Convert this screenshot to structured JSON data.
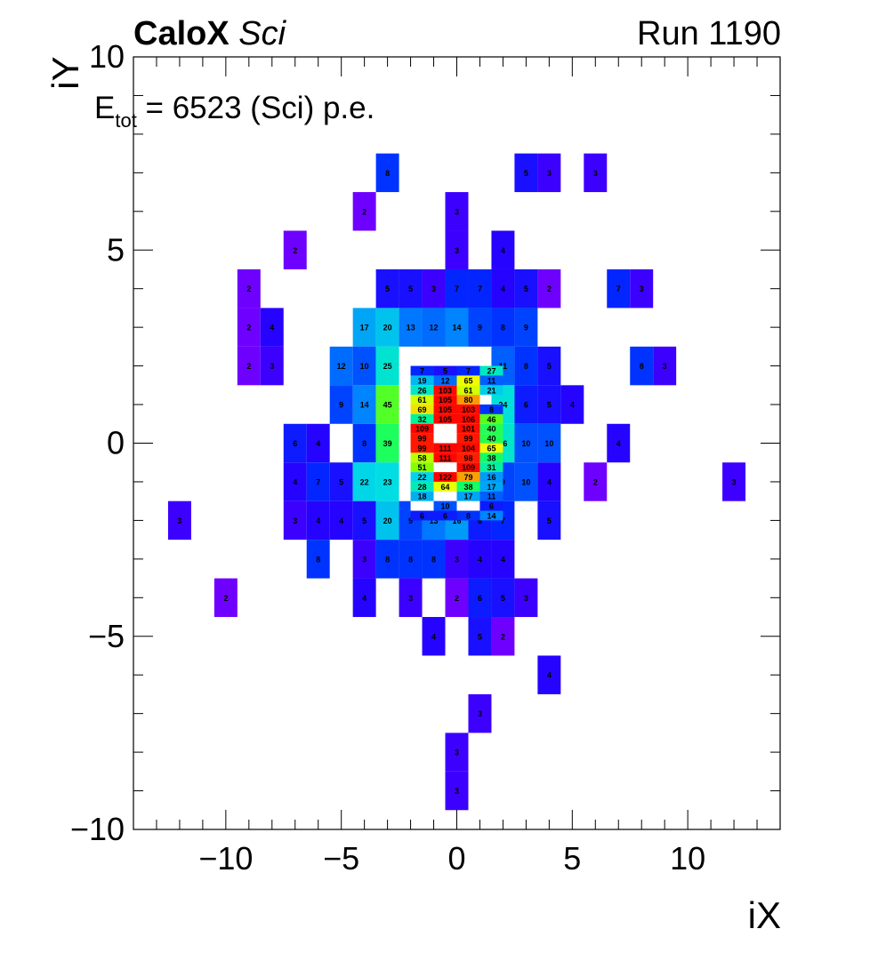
{
  "title": {
    "name": "CaloX",
    "detector": "Sci",
    "run": "Run 1190"
  },
  "annotation": {
    "prefix": "E",
    "sub": "tot",
    "text": " = 6523 (Sci) p.e."
  },
  "chart_data": {
    "type": "heatmap",
    "xlabel": "iX",
    "ylabel": "iY",
    "xlim": [
      -14,
      14
    ],
    "ylim": [
      -10,
      10
    ],
    "xticks": [
      -10,
      -5,
      0,
      5,
      10
    ],
    "yticks": [
      -10,
      -5,
      0,
      5,
      10
    ],
    "colormap": "rainbow (violet→blue→cyan→green→yellow→red)",
    "zmax": 122,
    "coarse_cells": [
      {
        "x": -3,
        "y": 7,
        "value": 8
      },
      {
        "x": 3,
        "y": 7,
        "value": 5
      },
      {
        "x": 4,
        "y": 7,
        "value": 3
      },
      {
        "x": 6,
        "y": 7,
        "value": 3
      },
      {
        "x": -4,
        "y": 6,
        "value": 2
      },
      {
        "x": 0,
        "y": 6,
        "value": 3
      },
      {
        "x": -7,
        "y": 5,
        "value": 2
      },
      {
        "x": 0,
        "y": 5,
        "value": 3
      },
      {
        "x": 2,
        "y": 5,
        "value": 4
      },
      {
        "x": -9,
        "y": 4,
        "value": 2
      },
      {
        "x": -3,
        "y": 4,
        "value": 5
      },
      {
        "x": -2,
        "y": 4,
        "value": 5
      },
      {
        "x": -1,
        "y": 4,
        "value": 3
      },
      {
        "x": 0,
        "y": 4,
        "value": 7
      },
      {
        "x": 1,
        "y": 4,
        "value": 7
      },
      {
        "x": 2,
        "y": 4,
        "value": 4
      },
      {
        "x": 3,
        "y": 4,
        "value": 5
      },
      {
        "x": 4,
        "y": 4,
        "value": 2
      },
      {
        "x": 7,
        "y": 4,
        "value": 7
      },
      {
        "x": 8,
        "y": 4,
        "value": 3
      },
      {
        "x": -9,
        "y": 3,
        "value": 2
      },
      {
        "x": -8,
        "y": 3,
        "value": 4
      },
      {
        "x": -4,
        "y": 3,
        "value": 17
      },
      {
        "x": -3,
        "y": 3,
        "value": 20
      },
      {
        "x": -2,
        "y": 3,
        "value": 13
      },
      {
        "x": -1,
        "y": 3,
        "value": 12
      },
      {
        "x": 0,
        "y": 3,
        "value": 14
      },
      {
        "x": 1,
        "y": 3,
        "value": 9
      },
      {
        "x": 2,
        "y": 3,
        "value": 8
      },
      {
        "x": 3,
        "y": 3,
        "value": 9
      },
      {
        "x": -9,
        "y": 2,
        "value": 2
      },
      {
        "x": -8,
        "y": 2,
        "value": 3
      },
      {
        "x": -5,
        "y": 2,
        "value": 12
      },
      {
        "x": -4,
        "y": 2,
        "value": 10
      },
      {
        "x": -3,
        "y": 2,
        "value": 25
      },
      {
        "x": 2,
        "y": 2,
        "value": 11
      },
      {
        "x": 3,
        "y": 2,
        "value": 8
      },
      {
        "x": 4,
        "y": 2,
        "value": 5
      },
      {
        "x": 8,
        "y": 2,
        "value": 8
      },
      {
        "x": 9,
        "y": 2,
        "value": 3
      },
      {
        "x": -5,
        "y": 1,
        "value": 9
      },
      {
        "x": -4,
        "y": 1,
        "value": 14
      },
      {
        "x": -3,
        "y": 1,
        "value": 45
      },
      {
        "x": 2,
        "y": 1,
        "value": 24
      },
      {
        "x": 3,
        "y": 1,
        "value": 6
      },
      {
        "x": 4,
        "y": 1,
        "value": 5
      },
      {
        "x": 5,
        "y": 1,
        "value": 4
      },
      {
        "x": -7,
        "y": 0,
        "value": 6
      },
      {
        "x": -6,
        "y": 0,
        "value": 4
      },
      {
        "x": -4,
        "y": 0,
        "value": 8
      },
      {
        "x": -3,
        "y": 0,
        "value": 39
      },
      {
        "x": 2,
        "y": 0,
        "value": 26
      },
      {
        "x": 3,
        "y": 0,
        "value": 10
      },
      {
        "x": 4,
        "y": 0,
        "value": 10
      },
      {
        "x": 7,
        "y": 0,
        "value": 4
      },
      {
        "x": -7,
        "y": -1,
        "value": 4
      },
      {
        "x": -6,
        "y": -1,
        "value": 7
      },
      {
        "x": -5,
        "y": -1,
        "value": 5
      },
      {
        "x": -4,
        "y": -1,
        "value": 22
      },
      {
        "x": -3,
        "y": -1,
        "value": 23
      },
      {
        "x": 2,
        "y": -1,
        "value": 9
      },
      {
        "x": 3,
        "y": -1,
        "value": 10
      },
      {
        "x": 4,
        "y": -1,
        "value": 4
      },
      {
        "x": 6,
        "y": -1,
        "value": 2
      },
      {
        "x": 12,
        "y": -1,
        "value": 3
      },
      {
        "x": -12,
        "y": -2,
        "value": 3
      },
      {
        "x": -7,
        "y": -2,
        "value": 3
      },
      {
        "x": -6,
        "y": -2,
        "value": 4
      },
      {
        "x": -5,
        "y": -2,
        "value": 4
      },
      {
        "x": -4,
        "y": -2,
        "value": 5
      },
      {
        "x": -3,
        "y": -2,
        "value": 20
      },
      {
        "x": -2,
        "y": -2,
        "value": 9
      },
      {
        "x": -1,
        "y": -2,
        "value": 13
      },
      {
        "x": 0,
        "y": -2,
        "value": 16
      },
      {
        "x": 1,
        "y": -2,
        "value": 6
      },
      {
        "x": 2,
        "y": -2,
        "value": 7
      },
      {
        "x": 4,
        "y": -2,
        "value": 5
      },
      {
        "x": -6,
        "y": -3,
        "value": 8
      },
      {
        "x": -4,
        "y": -3,
        "value": 3
      },
      {
        "x": -3,
        "y": -3,
        "value": 8
      },
      {
        "x": -2,
        "y": -3,
        "value": 8
      },
      {
        "x": -1,
        "y": -3,
        "value": 8
      },
      {
        "x": 0,
        "y": -3,
        "value": 3
      },
      {
        "x": 1,
        "y": -3,
        "value": 4
      },
      {
        "x": 2,
        "y": -3,
        "value": 4
      },
      {
        "x": -10,
        "y": -4,
        "value": 2
      },
      {
        "x": -4,
        "y": -4,
        "value": 4
      },
      {
        "x": -2,
        "y": -4,
        "value": 3
      },
      {
        "x": 0,
        "y": -4,
        "value": 2
      },
      {
        "x": 1,
        "y": -4,
        "value": 6
      },
      {
        "x": 2,
        "y": -4,
        "value": 5
      },
      {
        "x": 3,
        "y": -4,
        "value": 3
      },
      {
        "x": -1,
        "y": -5,
        "value": 4
      },
      {
        "x": 1,
        "y": -5,
        "value": 5
      },
      {
        "x": 2,
        "y": -5,
        "value": 2
      },
      {
        "x": 4,
        "y": -6,
        "value": 4
      },
      {
        "x": 1,
        "y": -7,
        "value": 3
      },
      {
        "x": 0,
        "y": -8,
        "value": 3
      },
      {
        "x": 0,
        "y": -9,
        "value": 3
      }
    ],
    "fine_columns": [
      -1.5,
      -0.5,
      0.5,
      1.5
    ],
    "fine_rows": [
      {
        "y": 1.875,
        "values": [
          7,
          5,
          7,
          27
        ]
      },
      {
        "y": 1.625,
        "values": [
          19,
          12,
          65,
          11
        ]
      },
      {
        "y": 1.375,
        "values": [
          26,
          103,
          61,
          21
        ]
      },
      {
        "y": 1.125,
        "values": [
          61,
          105,
          80,
          null
        ]
      },
      {
        "y": 0.875,
        "values": [
          69,
          105,
          103,
          8
        ]
      },
      {
        "y": 0.625,
        "values": [
          32,
          105,
          106,
          46
        ]
      },
      {
        "y": 0.375,
        "values": [
          109,
          0,
          101,
          40
        ]
      },
      {
        "y": 0.125,
        "values": [
          99,
          0,
          99,
          40
        ]
      },
      {
        "y": -0.125,
        "values": [
          99,
          111,
          104,
          65
        ]
      },
      {
        "y": -0.375,
        "values": [
          58,
          111,
          98,
          38
        ]
      },
      {
        "y": -0.625,
        "values": [
          51,
          0,
          109,
          31
        ]
      },
      {
        "y": -0.875,
        "values": [
          22,
          122,
          79,
          16
        ]
      },
      {
        "y": -1.125,
        "values": [
          28,
          64,
          38,
          17
        ]
      },
      {
        "y": -1.375,
        "values": [
          18,
          0,
          17,
          11
        ]
      },
      {
        "y": -1.625,
        "values": [
          0,
          10,
          0,
          6
        ]
      },
      {
        "y": -1.875,
        "values": [
          6,
          6,
          8,
          14
        ]
      }
    ]
  }
}
